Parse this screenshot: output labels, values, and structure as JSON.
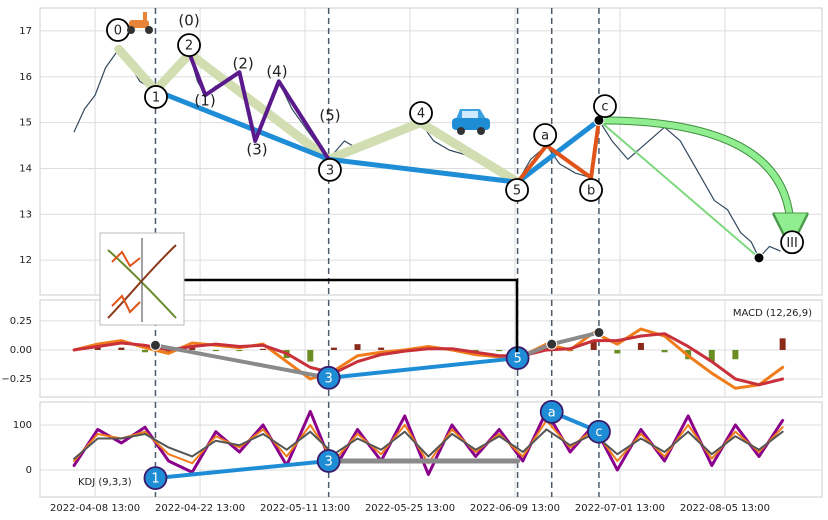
{
  "chart_data": [
    {
      "type": "line",
      "xlim": [
        0,
        298
      ],
      "ylim": [
        11.24,
        17.5
      ],
      "yticks": [
        12,
        13,
        14,
        15,
        16,
        17
      ],
      "grid": true,
      "vlines": [
        44,
        110,
        182,
        195,
        213
      ],
      "series": [
        {
          "color": "#34495e",
          "width": 1.2,
          "x": [
            13,
            17,
            21,
            25,
            30,
            34,
            38,
            44,
            48,
            52,
            57,
            60,
            63,
            67,
            72,
            76,
            79,
            82,
            86,
            91,
            96,
            101,
            106,
            110,
            116,
            122,
            128,
            134,
            140,
            145,
            150,
            156,
            162,
            168,
            174,
            182,
            187,
            193,
            198,
            204,
            210,
            213,
            218,
            224,
            230,
            238,
            244,
            250,
            257,
            262,
            267,
            271,
            274,
            278,
            282
          ],
          "values": [
            14.8,
            15.3,
            15.6,
            16.2,
            16.6,
            16.3,
            15.9,
            15.7,
            16.0,
            16.3,
            16.5,
            15.9,
            15.6,
            15.8,
            15.9,
            16.1,
            15.3,
            14.6,
            15.2,
            15.9,
            15.3,
            14.9,
            14.5,
            14.2,
            14.6,
            14.4,
            14.7,
            14.8,
            14.9,
            15.0,
            14.6,
            14.4,
            14.3,
            14.1,
            13.9,
            13.7,
            14.2,
            14.5,
            14.1,
            13.9,
            13.8,
            15.05,
            14.6,
            14.2,
            14.5,
            14.9,
            14.6,
            14.0,
            13.3,
            13.1,
            12.6,
            12.4,
            12.05,
            12.3,
            12.2
          ]
        },
        {
          "color": "#d3ddb2",
          "width": 9,
          "x": [
            30,
            44,
            57,
            110,
            145,
            182
          ],
          "values": [
            16.6,
            15.7,
            16.5,
            14.2,
            15.0,
            13.7
          ]
        },
        {
          "color": "#1f8dd6",
          "width": 5,
          "x": [
            44,
            110,
            182,
            213
          ],
          "values": [
            15.7,
            14.2,
            13.7,
            15.05
          ]
        },
        {
          "color": "#5b1a8c",
          "width": 4,
          "x": [
            57,
            63,
            76,
            82,
            91,
            110
          ],
          "values": [
            16.5,
            15.6,
            16.1,
            14.6,
            15.9,
            14.2
          ]
        },
        {
          "color": "#e0541a",
          "width": 4,
          "x": [
            182,
            193,
            210,
            213
          ],
          "values": [
            13.7,
            14.5,
            13.8,
            15.05
          ]
        },
        {
          "color": "#90ee90",
          "width": 6,
          "arrow": true,
          "x": [
            213,
            286
          ],
          "values": [
            15.05,
            12.39
          ]
        },
        {
          "color": "#7ed87e",
          "width": 2,
          "dots": "#000000",
          "x": [
            213,
            274
          ],
          "values": [
            15.05,
            12.05
          ]
        }
      ],
      "annotations": [
        {
          "text": "0",
          "circled": true,
          "x": 29.7,
          "y": 17.02
        },
        {
          "text": "(0)",
          "x": 56.8,
          "y": 17.24
        },
        {
          "text": "2",
          "circled": true,
          "x": 56.8,
          "y": 16.69
        },
        {
          "text": "1",
          "circled": true,
          "x": 44.2,
          "y": 15.56
        },
        {
          "text": "(1)",
          "x": 62.9,
          "y": 15.49
        },
        {
          "text": "(2)",
          "x": 77.4,
          "y": 16.3
        },
        {
          "text": "(4)",
          "x": 90.3,
          "y": 16.13
        },
        {
          "text": "(3)",
          "x": 82.7,
          "y": 14.42
        },
        {
          "text": "(5)",
          "x": 110.5,
          "y": 15.17
        },
        {
          "text": "3",
          "circled": true,
          "x": 110.5,
          "y": 13.97
        },
        {
          "text": "4",
          "circled": true,
          "x": 145.2,
          "y": 15.21
        },
        {
          "text": "5",
          "circled": true,
          "x": 181.8,
          "y": 13.53
        },
        {
          "text": "a",
          "circled": true,
          "x": 192.5,
          "y": 14.73
        },
        {
          "text": "b",
          "circled": true,
          "x": 210,
          "y": 13.53
        },
        {
          "text": "c",
          "circled": true,
          "x": 215.3,
          "y": 15.36
        },
        {
          "text": "III",
          "circled": true,
          "x": 286.6,
          "y": 12.39
        }
      ]
    },
    {
      "type": "line",
      "title": "MACD (12,26,9)",
      "xlim": [
        0,
        298
      ],
      "ylim": [
        -0.405,
        0.43
      ],
      "yticks": [
        {
          "value": -0.25,
          "label": "−0.25"
        },
        {
          "value": 0,
          "label": "0.00"
        },
        0.25
      ],
      "grid": true,
      "vlines": [
        44,
        110,
        182,
        195,
        213
      ],
      "bars": {
        "pos_color": "#8b2a1a",
        "neg_color": "#6b8e23",
        "x": [
          13,
          22,
          31,
          40,
          49,
          58,
          67,
          76,
          85,
          94,
          103,
          112,
          121,
          130,
          139,
          148,
          157,
          166,
          175,
          184,
          193,
          202,
          211,
          220,
          229,
          238,
          247,
          256,
          265,
          274,
          283
        ],
        "values": [
          0.0,
          0.02,
          0.02,
          -0.02,
          -0.03,
          0.03,
          -0.01,
          -0.01,
          0.01,
          -0.07,
          -0.1,
          0.02,
          0.05,
          0.02,
          0.01,
          0.02,
          -0.01,
          -0.02,
          -0.01,
          0.0,
          0.05,
          -0.01,
          0.07,
          -0.03,
          0.06,
          -0.02,
          -0.08,
          -0.1,
          -0.08,
          0.0,
          0.1
        ]
      },
      "series": [
        {
          "color": "#f07c1a",
          "width": 3,
          "x": [
            13,
            22,
            31,
            40,
            49,
            58,
            67,
            76,
            85,
            94,
            103,
            112,
            121,
            130,
            139,
            148,
            157,
            166,
            175,
            184,
            193,
            202,
            211,
            220,
            229,
            238,
            247,
            256,
            265,
            274,
            283
          ],
          "values": [
            0.0,
            0.05,
            0.08,
            0.02,
            -0.03,
            0.06,
            0.04,
            0.02,
            0.05,
            -0.1,
            -0.25,
            -0.18,
            -0.05,
            -0.02,
            0.0,
            0.03,
            0.0,
            -0.04,
            -0.06,
            -0.05,
            0.05,
            0.0,
            0.15,
            0.05,
            0.18,
            0.12,
            -0.05,
            -0.2,
            -0.33,
            -0.3,
            -0.15
          ]
        },
        {
          "color": "#c8303a",
          "width": 3,
          "x": [
            13,
            22,
            31,
            40,
            49,
            58,
            67,
            76,
            85,
            94,
            103,
            112,
            121,
            130,
            139,
            148,
            157,
            166,
            175,
            184,
            193,
            202,
            211,
            220,
            229,
            238,
            247,
            256,
            265,
            274,
            283
          ],
          "values": [
            0.0,
            0.03,
            0.06,
            0.04,
            0.0,
            0.03,
            0.05,
            0.03,
            0.04,
            -0.03,
            -0.15,
            -0.2,
            -0.1,
            -0.04,
            -0.01,
            0.01,
            0.01,
            -0.02,
            -0.05,
            -0.05,
            0.0,
            0.01,
            0.08,
            0.08,
            0.12,
            0.14,
            0.03,
            -0.1,
            -0.25,
            -0.3,
            -0.25
          ]
        },
        {
          "color": "#8a8a8a",
          "width": 4,
          "dots": "#333333",
          "x": [
            44,
            110
          ],
          "values": [
            0.04,
            -0.24
          ]
        },
        {
          "color": "#1f8dd6",
          "width": 4,
          "x": [
            110,
            182
          ],
          "values": [
            -0.24,
            -0.07
          ]
        },
        {
          "color": "#8a8a8a",
          "width": 4,
          "dots": "#333333",
          "x": [
            182,
            195,
            213
          ],
          "values": [
            -0.07,
            0.05,
            0.15
          ]
        }
      ],
      "annotations": [
        {
          "text": "3",
          "circled": true,
          "fill": "#1f8dd6",
          "x": 110,
          "y": -0.24
        },
        {
          "text": "5",
          "circled": true,
          "fill": "#1f8dd6",
          "x": 182,
          "y": -0.07
        }
      ]
    },
    {
      "type": "line",
      "title": "KDJ (9,3,3)",
      "xlim": [
        0,
        298
      ],
      "ylim": [
        -60,
        151
      ],
      "yticks": [
        0,
        100
      ],
      "grid": true,
      "vlines": [
        44,
        110,
        182,
        195,
        213
      ],
      "xticks": [
        {
          "value": 21,
          "label": "2022-04-08 13:00"
        },
        {
          "value": 61,
          "label": "2022-04-22 13:00"
        },
        {
          "value": 101,
          "label": "2022-05-11 13:00"
        },
        {
          "value": 141,
          "label": "2022-05-25 13:00"
        },
        {
          "value": 181,
          "label": "2022-06-09 13:00"
        },
        {
          "value": 221,
          "label": "2022-07-01 13:00"
        },
        {
          "value": 261,
          "label": "2022-08-05 13:00"
        }
      ],
      "series": [
        {
          "color": "#8b008b",
          "width": 3,
          "x": [
            13,
            22,
            31,
            40,
            49,
            58,
            67,
            76,
            85,
            94,
            103,
            112,
            121,
            130,
            139,
            148,
            157,
            166,
            175,
            184,
            193,
            202,
            211,
            220,
            229,
            238,
            247,
            256,
            265,
            274,
            283
          ],
          "values": [
            10,
            90,
            60,
            95,
            20,
            -5,
            85,
            40,
            100,
            10,
            130,
            0,
            90,
            20,
            120,
            -10,
            100,
            30,
            90,
            20,
            130,
            40,
            100,
            0,
            90,
            20,
            120,
            10,
            100,
            30,
            110
          ]
        },
        {
          "color": "#f07c1a",
          "width": 2,
          "x": [
            13,
            22,
            31,
            40,
            49,
            58,
            67,
            76,
            85,
            94,
            103,
            112,
            121,
            130,
            139,
            148,
            157,
            166,
            175,
            184,
            193,
            202,
            211,
            220,
            229,
            238,
            247,
            256,
            265,
            274,
            283
          ],
          "values": [
            20,
            80,
            70,
            85,
            35,
            15,
            75,
            50,
            90,
            30,
            100,
            20,
            80,
            35,
            100,
            15,
            90,
            40,
            80,
            30,
            110,
            50,
            90,
            20,
            80,
            30,
            100,
            25,
            85,
            40,
            95
          ]
        },
        {
          "color": "#555555",
          "width": 2,
          "x": [
            13,
            22,
            31,
            40,
            49,
            58,
            67,
            76,
            85,
            94,
            103,
            112,
            121,
            130,
            139,
            148,
            157,
            166,
            175,
            184,
            193,
            202,
            211,
            220,
            229,
            238,
            247,
            256,
            265,
            274,
            283
          ],
          "values": [
            25,
            70,
            70,
            80,
            50,
            30,
            65,
            55,
            80,
            45,
            85,
            35,
            70,
            45,
            85,
            30,
            80,
            45,
            75,
            40,
            90,
            55,
            80,
            35,
            70,
            40,
            85,
            35,
            75,
            45,
            85
          ]
        },
        {
          "color": "#1f8dd6",
          "width": 4,
          "x": [
            44,
            110
          ],
          "values": [
            -18,
            20
          ]
        },
        {
          "color": "#8a8a8a",
          "width": 5,
          "x": [
            110,
            182
          ],
          "values": [
            20,
            20
          ]
        },
        {
          "color": "#1f8dd6",
          "width": 4,
          "x": [
            195,
            213
          ],
          "values": [
            129,
            85
          ]
        }
      ],
      "annotations": [
        {
          "text": "1",
          "circled": true,
          "fill": "#1f8dd6",
          "x": 44,
          "y": -18
        },
        {
          "text": "3",
          "circled": true,
          "fill": "#1f8dd6",
          "x": 110,
          "y": 20
        },
        {
          "text": "a",
          "circled": true,
          "fill": "#1f8dd6",
          "x": 195,
          "y": 129
        },
        {
          "text": "c",
          "circled": true,
          "fill": "#1f8dd6",
          "x": 213,
          "y": 85
        }
      ]
    }
  ]
}
